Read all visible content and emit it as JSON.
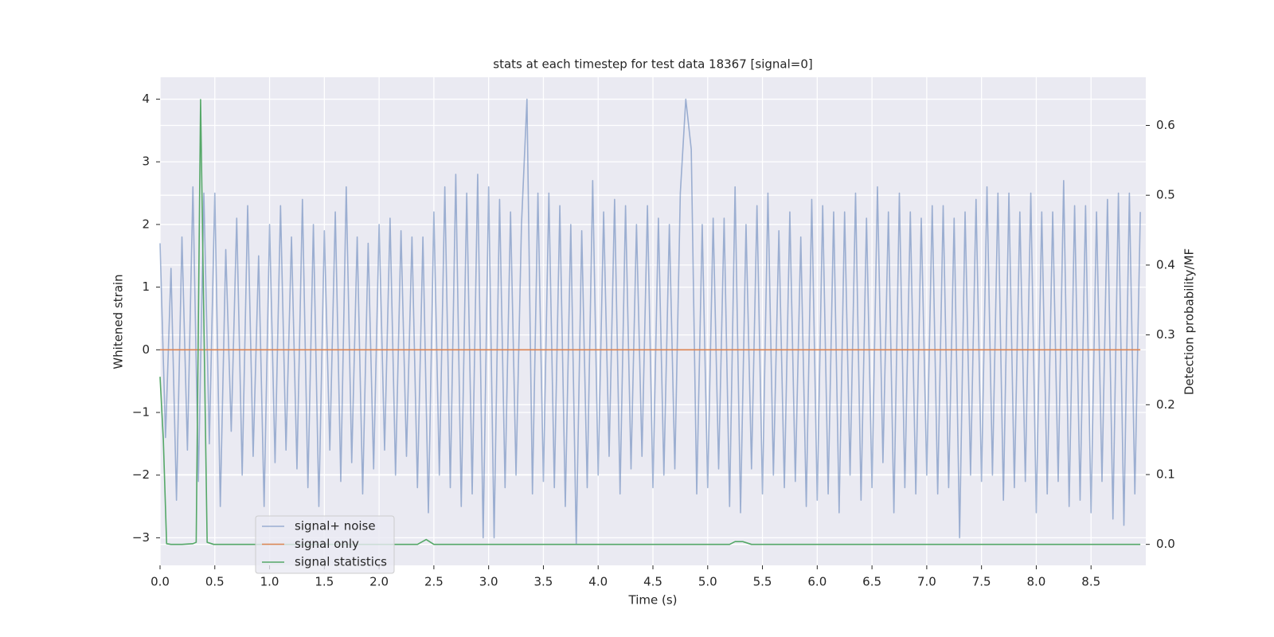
{
  "chart_data": {
    "type": "line",
    "title": "stats at each timestep for test data 18367 [signal=0]",
    "xlabel": "Time (s)",
    "ylabel": "Whitened strain",
    "y2label": "Detection probability/MF",
    "xlim": [
      0,
      9.0
    ],
    "ylim": [
      -3.44,
      4.35
    ],
    "y2lim": [
      -0.03,
      0.669
    ],
    "xticks": [
      {
        "value": 0,
        "label": "0.0"
      },
      0.5,
      {
        "value": 1,
        "label": "1.0"
      },
      1.5,
      {
        "value": 2,
        "label": "2.0"
      },
      2.5,
      {
        "value": 3,
        "label": "3.0"
      },
      3.5,
      {
        "value": 4,
        "label": "4.0"
      },
      4.5,
      {
        "value": 5,
        "label": "5.0"
      },
      5.5,
      {
        "value": 6,
        "label": "6.0"
      },
      6.5,
      {
        "value": 7,
        "label": "7.0"
      },
      7.5,
      {
        "value": 8,
        "label": "8.0"
      },
      8.5
    ],
    "yticks": [
      {
        "value": -3,
        "label": "−3"
      },
      {
        "value": -2,
        "label": "−2"
      },
      {
        "value": -1,
        "label": "−1"
      },
      0,
      1,
      2,
      3,
      4
    ],
    "y2ticks": [
      {
        "value": 0,
        "label": "0.0"
      },
      0.1,
      0.2,
      0.3,
      0.4,
      0.5,
      0.6
    ],
    "grid": true,
    "legend": "lower left",
    "series": [
      {
        "name": "signal+ noise",
        "color": "#4c72b0",
        "opacity": 0.5,
        "x": [
          0.0,
          0.05,
          0.1,
          0.15,
          0.2,
          0.25,
          0.3,
          0.35,
          0.4,
          0.45,
          0.5,
          0.55,
          0.6,
          0.65,
          0.7,
          0.75,
          0.8,
          0.85,
          0.9,
          0.95,
          1.0,
          1.05,
          1.1,
          1.15,
          1.2,
          1.25,
          1.3,
          1.35,
          1.4,
          1.45,
          1.5,
          1.55,
          1.6,
          1.65,
          1.7,
          1.75,
          1.8,
          1.85,
          1.9,
          1.95,
          2.0,
          2.05,
          2.1,
          2.15,
          2.2,
          2.25,
          2.3,
          2.35,
          2.4,
          2.45,
          2.5,
          2.55,
          2.6,
          2.65,
          2.7,
          2.75,
          2.8,
          2.85,
          2.9,
          2.95,
          3.0,
          3.05,
          3.1,
          3.15,
          3.2,
          3.25,
          3.3,
          3.35,
          3.4,
          3.45,
          3.5,
          3.55,
          3.6,
          3.65,
          3.7,
          3.75,
          3.8,
          3.85,
          3.9,
          3.95,
          4.0,
          4.05,
          4.1,
          4.15,
          4.2,
          4.25,
          4.3,
          4.35,
          4.4,
          4.45,
          4.5,
          4.55,
          4.6,
          4.65,
          4.7,
          4.75,
          4.8,
          4.85,
          4.9,
          4.95,
          5.0,
          5.05,
          5.1,
          5.15,
          5.2,
          5.25,
          5.3,
          5.35,
          5.4,
          5.45,
          5.5,
          5.55,
          5.6,
          5.65,
          5.7,
          5.75,
          5.8,
          5.85,
          5.9,
          5.95,
          6.0,
          6.05,
          6.1,
          6.15,
          6.2,
          6.25,
          6.3,
          6.35,
          6.4,
          6.45,
          6.5,
          6.55,
          6.6,
          6.65,
          6.7,
          6.75,
          6.8,
          6.85,
          6.9,
          6.95,
          7.0,
          7.05,
          7.1,
          7.15,
          7.2,
          7.25,
          7.3,
          7.35,
          7.4,
          7.45,
          7.5,
          7.55,
          7.6,
          7.65,
          7.7,
          7.75,
          7.8,
          7.85,
          7.9,
          7.95,
          8.0,
          8.05,
          8.1,
          8.15,
          8.2,
          8.25,
          8.3,
          8.35,
          8.4,
          8.45,
          8.5,
          8.55,
          8.6,
          8.65,
          8.7,
          8.75,
          8.8,
          8.85,
          8.9,
          8.95
        ],
        "values": [
          1.7,
          -1.4,
          1.3,
          -2.4,
          1.8,
          -1.6,
          2.6,
          -2.1,
          2.5,
          -1.5,
          2.5,
          -2.5,
          1.6,
          -1.3,
          2.1,
          -2.0,
          2.3,
          -1.7,
          1.5,
          -2.5,
          2.0,
          -1.8,
          2.3,
          -1.6,
          1.8,
          -1.9,
          2.4,
          -2.2,
          2.0,
          -2.5,
          1.9,
          -1.6,
          2.2,
          -2.1,
          2.6,
          -1.8,
          1.8,
          -2.3,
          1.7,
          -1.9,
          2.0,
          -1.6,
          2.1,
          -2.0,
          1.9,
          -1.7,
          1.8,
          -2.2,
          1.8,
          -2.6,
          2.2,
          -2.0,
          2.6,
          -2.2,
          2.8,
          -2.5,
          2.5,
          -2.3,
          2.8,
          -3.0,
          2.6,
          -3.0,
          2.4,
          -2.2,
          2.2,
          -2.0,
          2.0,
          4.0,
          -2.3,
          2.5,
          -2.1,
          2.5,
          -2.2,
          2.3,
          -2.5,
          2.0,
          -3.1,
          1.9,
          -2.2,
          2.7,
          -2.0,
          2.2,
          -1.7,
          2.4,
          -2.3,
          2.3,
          -1.9,
          2.0,
          -1.7,
          2.3,
          -2.2,
          2.1,
          -2.0,
          2.0,
          -1.9,
          2.5,
          4.0,
          3.2,
          -2.3,
          2.0,
          -2.2,
          2.1,
          -1.9,
          2.1,
          -2.5,
          2.6,
          -2.6,
          2.0,
          -1.9,
          2.3,
          -2.3,
          2.5,
          -2.0,
          1.9,
          -2.2,
          2.2,
          -2.1,
          1.8,
          -2.5,
          2.4,
          -2.4,
          2.3,
          -2.3,
          2.2,
          -2.6,
          2.2,
          -2.0,
          2.5,
          -2.4,
          2.1,
          -2.2,
          2.6,
          -1.8,
          2.2,
          -2.6,
          2.5,
          -2.2,
          2.2,
          -2.3,
          2.1,
          -2.0,
          2.3,
          -2.3,
          2.3,
          -2.2,
          2.1,
          -3.0,
          2.2,
          -2.0,
          2.4,
          -2.1,
          2.6,
          -2.0,
          2.5,
          -2.4,
          2.5,
          -2.2,
          2.2,
          -2.1,
          2.5,
          -2.6,
          2.2,
          -2.3,
          2.2,
          -2.1,
          2.7,
          -2.5,
          2.3,
          -2.4,
          2.3,
          -2.6,
          2.2,
          -2.1,
          2.4,
          -2.7,
          2.5,
          -2.8,
          2.5,
          -2.3,
          2.2
        ]
      },
      {
        "name": "signal only",
        "color": "#dd8452",
        "opacity": 1,
        "x": [
          0.0,
          8.95
        ],
        "values": [
          0,
          0
        ]
      },
      {
        "name": "signal statistics",
        "color": "#55a868",
        "opacity": 1,
        "axis": "y2",
        "x": [
          0.0,
          0.03,
          0.06,
          0.1,
          0.2,
          0.3,
          0.33,
          0.37,
          0.43,
          0.49,
          2.35,
          2.43,
          2.5,
          5.2,
          5.25,
          5.32,
          5.4,
          8.95
        ],
        "values": [
          0.24,
          0.15,
          0.001,
          0.0,
          0.0,
          0.001,
          0.003,
          0.637,
          0.003,
          0.0,
          0.0,
          0.007,
          0.0,
          0.0,
          0.004,
          0.004,
          0.0,
          0.0
        ]
      }
    ]
  }
}
